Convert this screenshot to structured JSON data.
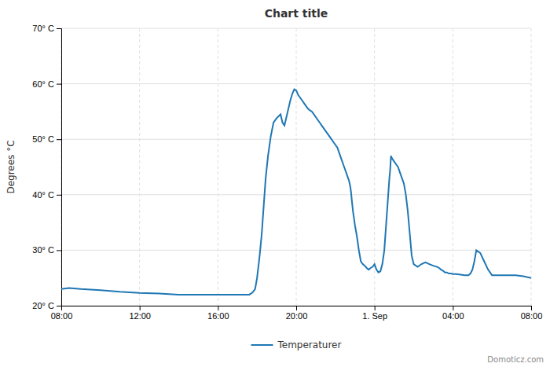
{
  "chart_data": {
    "type": "line",
    "title": "Chart title",
    "ylabel": "Degrees °C",
    "x": [
      0.0,
      0.2,
      0.5,
      1.0,
      1.5,
      2.0,
      2.5,
      3.0,
      3.5,
      3.8,
      4.0,
      4.1,
      4.15,
      4.2,
      4.3,
      4.4,
      4.5,
      4.6,
      4.7,
      4.75,
      4.8,
      4.85,
      4.9,
      4.95,
      5.0,
      5.05,
      5.08,
      5.12,
      5.15,
      5.18,
      5.22,
      5.28,
      5.35,
      5.42,
      5.5,
      5.6,
      5.65,
      5.7,
      5.75,
      5.8,
      5.85,
      5.9,
      5.95,
      6.0,
      6.05,
      6.1,
      6.15,
      6.2,
      6.25,
      6.3,
      6.35,
      6.4,
      6.45,
      6.5,
      6.55,
      6.6,
      6.65,
      6.7,
      6.75,
      6.8,
      6.85,
      6.9,
      6.95,
      7.0,
      7.05,
      7.1,
      7.15,
      7.2,
      7.25,
      7.3,
      7.35,
      7.38,
      7.4,
      7.42,
      7.45,
      7.5,
      7.55,
      7.6,
      7.65,
      7.7,
      7.75,
      7.8,
      7.85,
      7.9,
      7.95,
      8.0,
      8.05,
      8.1,
      8.15,
      8.2,
      8.25,
      8.3,
      8.35,
      8.38,
      8.4,
      8.42,
      8.45,
      8.5,
      8.55,
      8.6,
      8.65,
      8.7,
      8.75,
      8.8,
      8.85,
      8.9,
      8.95,
      9.0,
      9.1,
      9.2,
      9.3,
      9.4,
      9.5,
      9.6,
      9.65,
      9.7,
      9.75,
      9.8,
      9.85,
      9.9,
      9.95,
      10.0,
      10.1,
      10.2,
      10.3,
      10.35,
      10.4,
      10.45,
      10.5,
      10.55,
      10.6,
      10.7,
      10.8,
      10.9,
      11.0,
      11.2,
      11.4,
      11.6,
      11.8,
      12.0
    ],
    "series": [
      {
        "name": "Temperaturer",
        "values": [
          23.0,
          23.2,
          23.0,
          22.8,
          22.5,
          22.3,
          22.2,
          22.0,
          22.0,
          22.0,
          22.0,
          22.0,
          22.0,
          22.0,
          22.0,
          22.0,
          22.0,
          22.0,
          22.0,
          22.0,
          22.0,
          22.2,
          22.5,
          23.0,
          25.0,
          28.0,
          30.0,
          33.0,
          36.0,
          39.0,
          43.0,
          47.0,
          50.5,
          53.0,
          53.8,
          54.5,
          53.0,
          52.5,
          54.0,
          55.5,
          57.0,
          58.2,
          59.0,
          58.8,
          58.0,
          57.5,
          57.0,
          56.5,
          56.0,
          55.5,
          55.2,
          55.0,
          54.5,
          54.0,
          53.5,
          53.0,
          52.5,
          52.0,
          51.5,
          51.0,
          50.5,
          50.0,
          49.5,
          49.0,
          48.5,
          47.5,
          46.5,
          45.5,
          44.5,
          43.5,
          42.5,
          41.5,
          40.5,
          39.0,
          37.0,
          34.5,
          32.5,
          30.0,
          28.0,
          27.5,
          27.2,
          26.8,
          26.5,
          26.8,
          27.0,
          27.5,
          26.5,
          26.0,
          26.2,
          27.5,
          30.0,
          35.0,
          40.0,
          43.0,
          44.5,
          47.0,
          46.5,
          46.0,
          45.5,
          45.0,
          44.0,
          43.0,
          42.0,
          40.0,
          37.0,
          33.0,
          29.0,
          27.5,
          27.0,
          27.5,
          27.8,
          27.5,
          27.2,
          27.0,
          26.8,
          26.5,
          26.3,
          26.0,
          26.0,
          25.8,
          25.8,
          25.7,
          25.7,
          25.6,
          25.5,
          25.5,
          25.5,
          25.8,
          26.5,
          28.0,
          30.0,
          29.5,
          28.0,
          26.5,
          25.5,
          25.5,
          25.5,
          25.5,
          25.3,
          25.0
        ]
      }
    ],
    "xlim": [
      0,
      12
    ],
    "xticks": [
      {
        "value": 0,
        "label": "08:00"
      },
      {
        "value": 2,
        "label": "12:00"
      },
      {
        "value": 4,
        "label": "16:00"
      },
      {
        "value": 6,
        "label": "20:00"
      },
      {
        "value": 8,
        "label": "1. Sep"
      },
      {
        "value": 10,
        "label": "04:00"
      },
      {
        "value": 12,
        "label": "08:00"
      }
    ],
    "ylim": [
      20,
      70
    ],
    "yticks": [
      {
        "value": 20,
        "label": "20° C"
      },
      {
        "value": 30,
        "label": "30° C"
      },
      {
        "value": 40,
        "label": "40° C"
      },
      {
        "value": 50,
        "label": "50° C"
      },
      {
        "value": 60,
        "label": "60° C"
      },
      {
        "value": 70,
        "label": "70° C"
      }
    ],
    "grid": true,
    "legend": "bottom",
    "annotations": [
      {
        "text": "Domoticz.com"
      }
    ]
  }
}
